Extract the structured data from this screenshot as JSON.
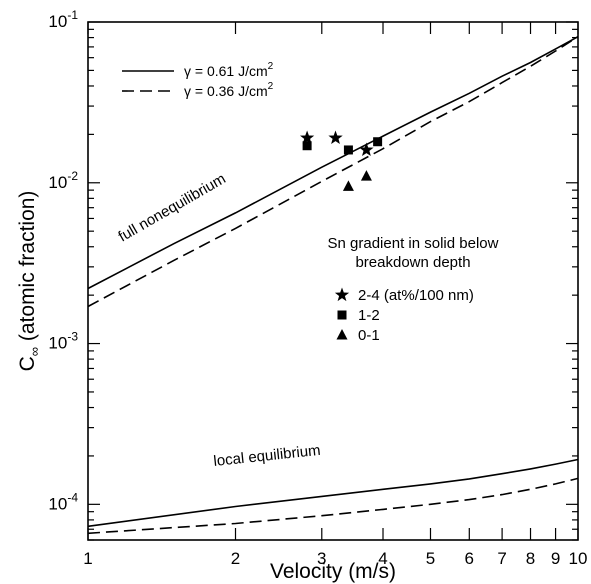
{
  "chart_data": {
    "type": "line",
    "xlabel": "Velocity (m/s)",
    "ylabel_main": "C",
    "ylabel_sub": "∞",
    "ylabel_rest": " (atomic fraction)",
    "x_scale": "log",
    "y_scale": "log",
    "xlim": [
      1,
      10
    ],
    "ylim": [
      6e-05,
      0.1
    ],
    "grid": false,
    "x_ticks": [
      {
        "v": 1,
        "label": "1"
      },
      {
        "v": 2,
        "label": "2"
      },
      {
        "v": 3,
        "label": "3"
      },
      {
        "v": 4,
        "label": "4"
      },
      {
        "v": 5,
        "label": "5"
      },
      {
        "v": 6,
        "label": "6"
      },
      {
        "v": 7,
        "label": "7"
      },
      {
        "v": 8,
        "label": "8"
      },
      {
        "v": 9,
        "label": "9"
      },
      {
        "v": 10,
        "label": "10"
      }
    ],
    "y_major_ticks": [
      {
        "v": 0.0001,
        "base": "10",
        "exp": "-4"
      },
      {
        "v": 0.001,
        "base": "10",
        "exp": "-3"
      },
      {
        "v": 0.01,
        "base": "10",
        "exp": "-2"
      },
      {
        "v": 0.1,
        "base": "10",
        "exp": "-1"
      }
    ],
    "legend": [
      {
        "style": "solid",
        "prefix": "γ = 0.61 J/cm",
        "sup": "2"
      },
      {
        "style": "dashed",
        "prefix": "γ = 0.36 J/cm",
        "sup": "2"
      }
    ],
    "series": [
      {
        "group": "full nonequilibrium",
        "style": "solid",
        "x": [
          1,
          1.5,
          2,
          3,
          4,
          5,
          6,
          7,
          8,
          9,
          10
        ],
        "y": [
          0.0022,
          0.0042,
          0.0065,
          0.0125,
          0.0195,
          0.0275,
          0.036,
          0.046,
          0.056,
          0.068,
          0.081
        ]
      },
      {
        "group": "full nonequilibrium",
        "style": "dashed",
        "x": [
          1,
          1.5,
          2,
          3,
          4,
          5,
          6,
          7,
          8,
          9,
          10
        ],
        "y": [
          0.0017,
          0.0033,
          0.0052,
          0.0102,
          0.0163,
          0.024,
          0.032,
          0.042,
          0.053,
          0.066,
          0.081
        ]
      },
      {
        "group": "local equilibrium",
        "style": "solid",
        "x": [
          1,
          2,
          3,
          4,
          5,
          6,
          7,
          8,
          9,
          10
        ],
        "y": [
          7.3e-05,
          9.7e-05,
          0.000112,
          0.000124,
          0.000134,
          0.000144,
          0.000155,
          0.000166,
          0.000178,
          0.00019
        ]
      },
      {
        "group": "local equilibrium",
        "style": "dashed",
        "x": [
          1,
          2,
          3,
          4,
          5,
          6,
          7,
          8,
          9,
          10
        ],
        "y": [
          6.6e-05,
          7.6e-05,
          8.5e-05,
          9.3e-05,
          0.0001,
          0.000107,
          0.000115,
          0.000124,
          0.000134,
          0.000145
        ]
      }
    ],
    "points": [
      {
        "marker": "star",
        "x": 2.8,
        "y": 0.019
      },
      {
        "marker": "star",
        "x": 3.2,
        "y": 0.019
      },
      {
        "marker": "star",
        "x": 3.7,
        "y": 0.016
      },
      {
        "marker": "square",
        "x": 2.8,
        "y": 0.017
      },
      {
        "marker": "square",
        "x": 3.4,
        "y": 0.016
      },
      {
        "marker": "square",
        "x": 3.9,
        "y": 0.018
      },
      {
        "marker": "triangle",
        "x": 3.4,
        "y": 0.0095
      },
      {
        "marker": "triangle",
        "x": 3.7,
        "y": 0.011
      }
    ],
    "annotations": {
      "full_label": "full nonequilibrium",
      "local_label": "local equilibrium",
      "sn_title_1": "Sn gradient in solid below",
      "sn_title_2": "breakdown depth",
      "sn_items": [
        {
          "marker": "star",
          "label": "2-4 (at%/100 nm)"
        },
        {
          "marker": "square",
          "label": "1-2"
        },
        {
          "marker": "triangle",
          "label": "0-1"
        }
      ]
    }
  }
}
